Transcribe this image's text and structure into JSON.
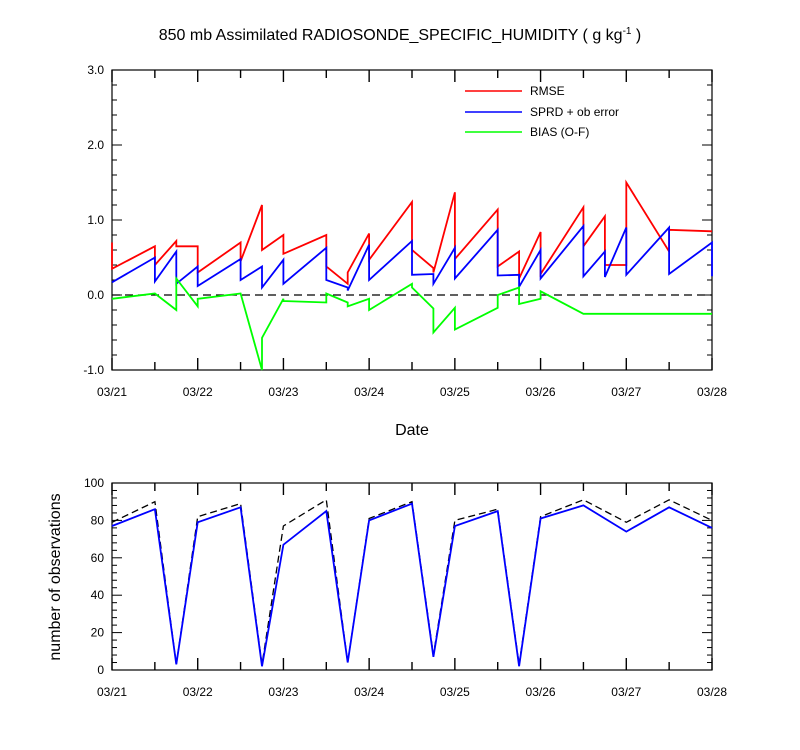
{
  "chart_data": [
    {
      "type": "line",
      "title_main": "850 mb Assimilated RADIOSONDE_SPECIFIC_HUMIDITY ( g kg",
      "title_sup": "-1",
      "title_end": " )",
      "xlabel": "Date",
      "ylabel": "",
      "xlim": [
        0,
        7
      ],
      "ylim": [
        -1.0,
        3.0
      ],
      "yticks": [
        -1.0,
        0.0,
        1.0,
        2.0,
        3.0
      ],
      "ytick_labels": [
        "-1.0",
        "0.0",
        "1.0",
        "2.0",
        "3.0"
      ],
      "xtick_labels": [
        "03/21",
        "03/22",
        "03/23",
        "03/24",
        "03/25",
        "03/26",
        "03/27",
        "03/28"
      ],
      "legend_position": "top-right",
      "zero_line": "dashed",
      "series": [
        {
          "name": "RMSE",
          "color": "#ff0000",
          "x": [
            0,
            0,
            0.5,
            0.5,
            0.75,
            0.75,
            1,
            1,
            1.5,
            1.5,
            1.75,
            1.75,
            2,
            2,
            2.5,
            2.5,
            2.75,
            2.75,
            3,
            3,
            3.5,
            3.5,
            3.75,
            3.75,
            4,
            4,
            4.5,
            4.5,
            4.75,
            4.75,
            5,
            5,
            5.5,
            5.5,
            5.75,
            5.75,
            6,
            6,
            6.5,
            6.5,
            7
          ],
          "y": [
            0.7,
            0.35,
            0.65,
            0.4,
            0.72,
            0.65,
            0.65,
            0.3,
            0.7,
            0.45,
            1.2,
            0.6,
            0.8,
            0.55,
            0.8,
            0.38,
            0.15,
            0.3,
            0.82,
            0.47,
            1.24,
            0.6,
            0.36,
            0.3,
            1.37,
            0.48,
            1.14,
            0.38,
            0.58,
            0.22,
            0.84,
            0.28,
            1.17,
            0.65,
            1.05,
            0.4,
            0.4,
            1.5,
            0.58,
            0.87,
            0.85
          ]
        },
        {
          "name": "SPRD + ob error",
          "color": "#0000ff",
          "x": [
            0,
            0.5,
            0.5,
            0.75,
            0.75,
            1,
            1,
            1.5,
            1.5,
            1.75,
            1.75,
            2,
            2,
            2.5,
            2.5,
            2.75,
            2.75,
            3,
            3,
            3.5,
            3.5,
            3.75,
            3.75,
            4,
            4,
            4.5,
            4.5,
            4.75,
            4.75,
            5,
            5,
            5.5,
            5.5,
            5.75,
            5.75,
            6,
            6,
            6.5,
            6.5,
            7,
            7
          ],
          "y": [
            0.17,
            0.5,
            0.18,
            0.58,
            0.15,
            0.38,
            0.12,
            0.48,
            0.2,
            0.38,
            0.1,
            0.47,
            0.15,
            0.63,
            0.2,
            0.1,
            0.06,
            0.67,
            0.2,
            0.72,
            0.27,
            0.28,
            0.15,
            0.63,
            0.22,
            0.87,
            0.26,
            0.27,
            0.11,
            0.6,
            0.22,
            0.92,
            0.25,
            0.58,
            0.24,
            0.9,
            0.27,
            0.9,
            0.28,
            0.7,
            0.25
          ]
        },
        {
          "name": "BIAS (O-F)",
          "color": "#00ff00",
          "x": [
            0,
            0.5,
            0.75,
            0.75,
            1,
            1,
            1.5,
            1.75,
            1.75,
            2,
            2,
            2.5,
            2.5,
            2.75,
            2.75,
            3,
            3,
            3.5,
            3.5,
            3.75,
            3.75,
            4,
            4,
            4.5,
            4.5,
            4.75,
            4.75,
            5,
            5,
            5.5,
            5.5,
            6,
            6.5,
            6.5,
            7
          ],
          "y": [
            -0.05,
            0.02,
            -0.2,
            0.22,
            -0.15,
            -0.05,
            0.02,
            -1.05,
            -0.57,
            -0.05,
            -0.08,
            -0.1,
            0.02,
            -0.1,
            -0.15,
            -0.05,
            -0.2,
            0.15,
            0.1,
            -0.18,
            -0.5,
            -0.17,
            -0.46,
            -0.17,
            0.0,
            0.1,
            -0.12,
            -0.05,
            0.05,
            -0.25,
            -0.25,
            -0.25,
            -0.25,
            -0.25,
            -0.25
          ]
        }
      ]
    },
    {
      "type": "line",
      "title": "",
      "xlabel": "",
      "ylabel": "number of observations",
      "xlim": [
        0,
        7
      ],
      "ylim": [
        0,
        100
      ],
      "yticks": [
        0,
        20,
        40,
        60,
        80,
        100
      ],
      "ytick_labels": [
        "0",
        "20",
        "40",
        "60",
        "80",
        "100"
      ],
      "xtick_labels": [
        "03/21",
        "03/22",
        "03/23",
        "03/24",
        "03/25",
        "03/26",
        "03/27",
        "03/28"
      ],
      "series": [
        {
          "color": "#000000",
          "dashed": true,
          "x": [
            0,
            0.5,
            0.75,
            1,
            1.5,
            1.75,
            2,
            2.5,
            2.75,
            3,
            3.5,
            3.75,
            4,
            4.5,
            4.75,
            5,
            5.5,
            6,
            6.5,
            7
          ],
          "y": [
            79,
            90,
            3,
            82,
            89,
            3,
            77,
            91,
            4,
            81,
            90,
            8,
            80,
            86,
            3,
            82,
            91,
            79,
            91,
            80
          ]
        },
        {
          "color": "#0000ff",
          "x": [
            0,
            0.5,
            0.75,
            1,
            1.5,
            1.75,
            2,
            2.5,
            2.75,
            3,
            3.5,
            3.75,
            4,
            4.5,
            4.75,
            5,
            5.5,
            6,
            6.5,
            7
          ],
          "y": [
            77,
            86,
            3,
            79,
            87,
            2,
            67,
            85,
            4,
            80,
            89,
            7,
            77,
            85,
            2,
            81,
            88,
            74,
            87,
            76
          ]
        }
      ]
    }
  ]
}
